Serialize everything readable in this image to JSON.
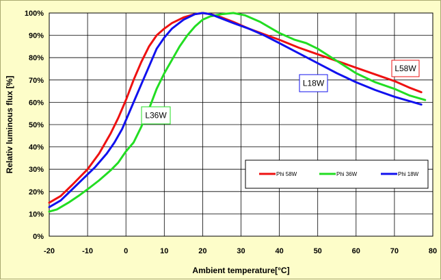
{
  "chart_data": {
    "type": "line",
    "title": "",
    "xlabel": "Ambient temperature[°C]",
    "ylabel": "Relativ luminous flux [%]",
    "xlim": [
      -20,
      80
    ],
    "ylim": [
      0,
      100
    ],
    "x_ticks": [
      "-20",
      "-10",
      "0",
      "10",
      "20",
      "30",
      "40",
      "50",
      "60",
      "70",
      "80"
    ],
    "y_ticks": [
      "0%",
      "10%",
      "20%",
      "30%",
      "40%",
      "50%",
      "60%",
      "70%",
      "80%",
      "90%",
      "100%"
    ],
    "grid": true,
    "legend_position": "lower-right",
    "series": [
      {
        "name": "Phi 58W",
        "color": "#ee1111",
        "points": [
          [
            -20,
            15
          ],
          [
            -17,
            18
          ],
          [
            -14,
            23
          ],
          [
            -10,
            30
          ],
          [
            -7,
            37
          ],
          [
            -4,
            46
          ],
          [
            -2,
            53
          ],
          [
            0,
            61
          ],
          [
            2,
            70
          ],
          [
            4,
            78
          ],
          [
            6,
            85
          ],
          [
            8,
            90
          ],
          [
            10,
            93
          ],
          [
            12,
            95.5
          ],
          [
            15,
            98
          ],
          [
            18,
            99.5
          ],
          [
            20,
            100
          ],
          [
            22,
            99.5
          ],
          [
            25,
            98
          ],
          [
            28,
            96
          ],
          [
            32,
            93
          ],
          [
            36,
            90.5
          ],
          [
            40,
            88
          ],
          [
            45,
            84.5
          ],
          [
            50,
            81.5
          ],
          [
            55,
            78.5
          ],
          [
            60,
            75.5
          ],
          [
            65,
            72.5
          ],
          [
            70,
            69.5
          ],
          [
            74,
            66.5
          ],
          [
            77,
            64.5
          ]
        ]
      },
      {
        "name": "Phi 36W",
        "color": "#22dd22",
        "points": [
          [
            -20,
            11
          ],
          [
            -18,
            12
          ],
          [
            -15,
            15
          ],
          [
            -12,
            18.5
          ],
          [
            -10,
            21
          ],
          [
            -7,
            25
          ],
          [
            -4,
            29.5
          ],
          [
            -2,
            33
          ],
          [
            0,
            38
          ],
          [
            2,
            42
          ],
          [
            4,
            49
          ],
          [
            6,
            57
          ],
          [
            8,
            66
          ],
          [
            10,
            73
          ],
          [
            12,
            79
          ],
          [
            14,
            85
          ],
          [
            16,
            90
          ],
          [
            18,
            94
          ],
          [
            20,
            97
          ],
          [
            22,
            98.5
          ],
          [
            25,
            99.5
          ],
          [
            28,
            100
          ],
          [
            31,
            99
          ],
          [
            35,
            96
          ],
          [
            40,
            91
          ],
          [
            44,
            88
          ],
          [
            47,
            86.5
          ],
          [
            50,
            84
          ],
          [
            55,
            78.5
          ],
          [
            60,
            73
          ],
          [
            65,
            69
          ],
          [
            70,
            66
          ],
          [
            74,
            63
          ],
          [
            78,
            61
          ]
        ]
      },
      {
        "name": "Phi 18W",
        "color": "#1111ee",
        "points": [
          [
            -20,
            13
          ],
          [
            -17,
            16
          ],
          [
            -14,
            21
          ],
          [
            -11,
            26
          ],
          [
            -8,
            31
          ],
          [
            -5,
            37
          ],
          [
            -3,
            42
          ],
          [
            -1,
            48
          ],
          [
            0,
            52
          ],
          [
            2,
            60
          ],
          [
            4,
            68
          ],
          [
            6,
            76
          ],
          [
            8,
            84
          ],
          [
            10,
            89
          ],
          [
            12,
            93
          ],
          [
            15,
            97
          ],
          [
            18,
            99.5
          ],
          [
            20,
            100
          ],
          [
            22,
            99.5
          ],
          [
            25,
            97.5
          ],
          [
            28,
            95.5
          ],
          [
            32,
            93
          ],
          [
            36,
            90
          ],
          [
            40,
            86.5
          ],
          [
            45,
            82
          ],
          [
            50,
            77.5
          ],
          [
            55,
            73
          ],
          [
            60,
            69
          ],
          [
            65,
            65.5
          ],
          [
            70,
            62.5
          ],
          [
            74,
            60.5
          ],
          [
            77,
            59
          ]
        ]
      }
    ],
    "legend": [
      "Phi 58W",
      "Phi 36W",
      "Phi 18W"
    ],
    "annotations": [
      {
        "text": "L36W",
        "color": "#22dd22"
      },
      {
        "text": "L18W",
        "color": "#1111ee"
      },
      {
        "text": "L58W",
        "color": "#ee1111"
      }
    ]
  }
}
